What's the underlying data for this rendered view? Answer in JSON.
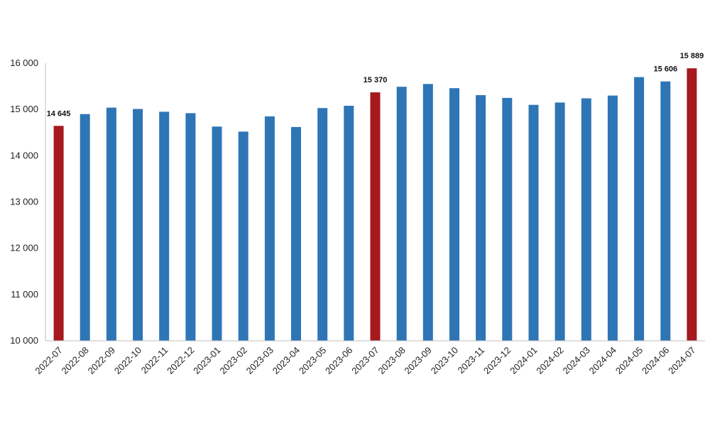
{
  "chart_data": {
    "type": "bar",
    "title": "",
    "xlabel": "",
    "ylabel": "",
    "ylim": [
      10000,
      16000
    ],
    "yticks": [
      10000,
      11000,
      12000,
      13000,
      14000,
      15000,
      16000
    ],
    "ytick_labels": [
      "10 000",
      "11 000",
      "12 000",
      "13 000",
      "14 000",
      "15 000",
      "16 000"
    ],
    "grid": false,
    "legend": "none",
    "colors": {
      "default": "#2e75b6",
      "highlight": "#a6191e",
      "axis": "#bfbfbf"
    },
    "categories": [
      "2022-07",
      "2022-08",
      "2022-09",
      "2022-10",
      "2022-11",
      "2022-12",
      "2023-01",
      "2023-02",
      "2023-03",
      "2023-04",
      "2023-05",
      "2023-06",
      "2023-07",
      "2023-08",
      "2023-09",
      "2023-10",
      "2023-11",
      "2023-12",
      "2024-01",
      "2024-02",
      "2024-03",
      "2024-04",
      "2024-05",
      "2024-06",
      "2024-07"
    ],
    "values": [
      14645,
      14900,
      15040,
      15010,
      14950,
      14920,
      14630,
      14520,
      14850,
      14620,
      15030,
      15080,
      15370,
      15490,
      15550,
      15460,
      15310,
      15250,
      15100,
      15150,
      15240,
      15300,
      15700,
      15606,
      15889
    ],
    "highlight": [
      true,
      false,
      false,
      false,
      false,
      false,
      false,
      false,
      false,
      false,
      false,
      false,
      true,
      false,
      false,
      false,
      false,
      false,
      false,
      false,
      false,
      false,
      false,
      false,
      true
    ],
    "data_labels": [
      "14 645",
      "",
      "",
      "",
      "",
      "",
      "",
      "",
      "",
      "",
      "",
      "",
      "15 370",
      "",
      "",
      "",
      "",
      "",
      "",
      "",
      "",
      "",
      "",
      "15 606",
      "15 889"
    ]
  }
}
